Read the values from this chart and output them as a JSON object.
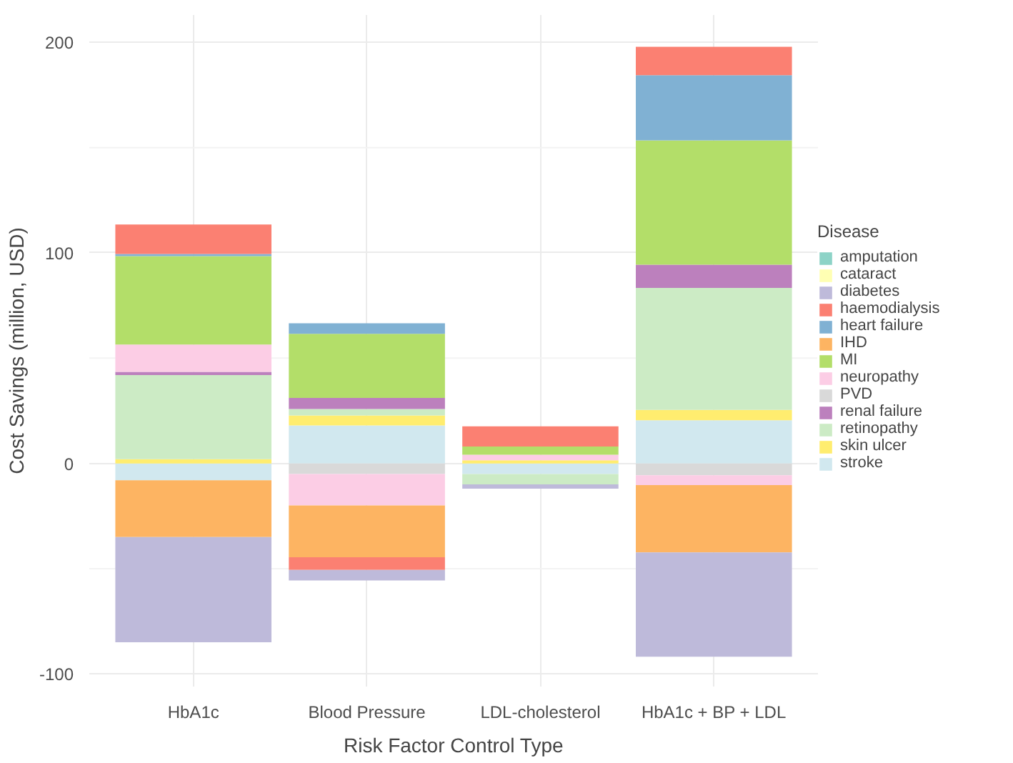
{
  "chart_data": {
    "type": "bar",
    "stacked": true,
    "xlabel": "Risk Factor Control Type",
    "ylabel": "Cost Savings (million, USD)",
    "legend_title": "Disease",
    "legend": "right",
    "grid": true,
    "categories": [
      "HbA1c",
      "Blood Pressure",
      "LDL-cholesterol",
      "HbA1c + BP + LDL"
    ],
    "ylim": [
      -106,
      213
    ],
    "yticks": [
      -100,
      0,
      100,
      200
    ],
    "series": [
      {
        "name": "stroke",
        "color": "#d1e8ef",
        "values": [
          -8,
          18,
          -5,
          20.5
        ]
      },
      {
        "name": "skin ulcer",
        "color": "#ffed6f",
        "values": [
          2,
          4.8,
          1.5,
          4.9
        ]
      },
      {
        "name": "retinopathy",
        "color": "#ccebc5",
        "values": [
          40,
          3,
          -5,
          58
        ]
      },
      {
        "name": "renal failure",
        "color": "#bc80bd",
        "values": [
          1.5,
          5.3,
          null,
          11
        ]
      },
      {
        "name": "PVD",
        "color": "#d9d9d9",
        "values": [
          null,
          -5,
          null,
          -5.6
        ]
      },
      {
        "name": "neuropathy",
        "color": "#fccde5",
        "values": [
          13,
          -15,
          2.6,
          -4.7
        ]
      },
      {
        "name": "MI",
        "color": "#b3de69",
        "values": [
          42,
          30.5,
          3.9,
          59
        ]
      },
      {
        "name": "IHD",
        "color": "#fdb462",
        "values": [
          -27,
          -24.6,
          null,
          -32
        ]
      },
      {
        "name": "heart failure",
        "color": "#80b1d3",
        "values": [
          1,
          5,
          null,
          31
        ]
      },
      {
        "name": "haemodialysis",
        "color": "#fb8072",
        "values": [
          14,
          -6,
          9.6,
          13.5
        ]
      },
      {
        "name": "diabetes",
        "color": "#bebada",
        "values": [
          -50,
          -5,
          -2,
          -49.5
        ]
      },
      {
        "name": "cataract",
        "color": "#ffffb3",
        "values": [
          null,
          null,
          null,
          null
        ]
      },
      {
        "name": "amputation",
        "color": "#8dd3c7",
        "values": [
          null,
          null,
          null,
          null
        ]
      }
    ]
  }
}
